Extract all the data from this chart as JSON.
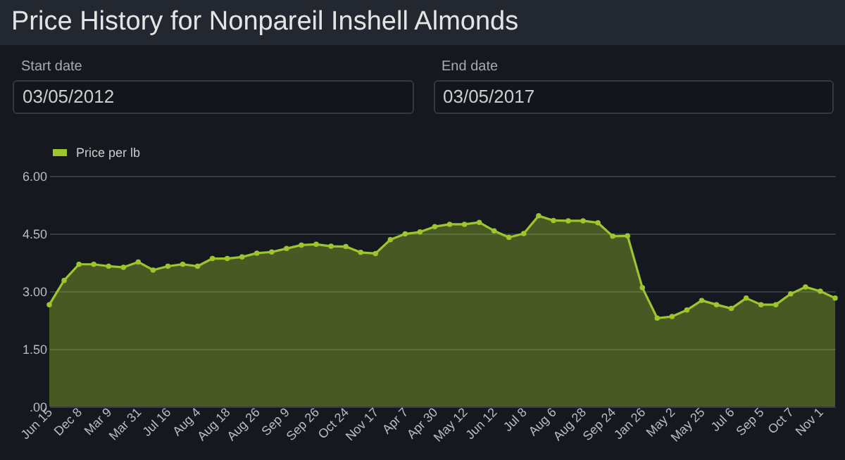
{
  "chart_data": {
    "type": "area",
    "title": "Price History for Nonpareil Inshell Almonds",
    "annotations": [
      "Start date",
      "03/05/2012",
      "End date",
      "03/05/2017"
    ],
    "categories": [
      "Jun 15",
      null,
      "Dec 8",
      null,
      "Mar 9",
      null,
      "Mar 31",
      null,
      "Jul 16",
      null,
      "Aug 4",
      null,
      "Aug 18",
      null,
      "Aug 26",
      null,
      "Sep 9",
      null,
      "Sep 26",
      null,
      "Oct 24",
      null,
      "Nov 17",
      null,
      "Apr 7",
      null,
      "Apr 30",
      null,
      "May 12",
      null,
      "Jun 12",
      null,
      "Jul 8",
      null,
      "Aug 6",
      null,
      "Aug 28",
      null,
      "Sep 24",
      null,
      "Jan 26",
      null,
      "May 2",
      null,
      "May 25",
      null,
      "Jul 6",
      null,
      "Sep 5",
      null,
      "Oct 7",
      null,
      "Nov 1",
      null
    ],
    "series": [
      {
        "name": "Price per lb",
        "color": "#9cc52e",
        "values": [
          2.65,
          3.28,
          3.7,
          3.7,
          3.65,
          3.62,
          3.76,
          3.55,
          3.65,
          3.7,
          3.65,
          3.85,
          3.85,
          3.89,
          3.99,
          4.02,
          4.11,
          4.2,
          4.22,
          4.17,
          4.16,
          4.01,
          3.98,
          4.34,
          4.49,
          4.54,
          4.68,
          4.74,
          4.74,
          4.79,
          4.57,
          4.4,
          4.5,
          4.96,
          4.84,
          4.83,
          4.83,
          4.78,
          4.43,
          4.44,
          3.09,
          2.3,
          2.34,
          2.51,
          2.76,
          2.65,
          2.55,
          2.82,
          2.65,
          2.65,
          2.93,
          3.11,
          3.0,
          2.82
        ]
      }
    ],
    "ylim": [
      0,
      6
    ],
    "yticks": [
      {
        "value": 0,
        "label": ".00"
      },
      {
        "value": 1.5,
        "label": "1.50"
      },
      {
        "value": 3,
        "label": "3.00"
      },
      {
        "value": 4.5,
        "label": "4.50"
      },
      {
        "value": 6,
        "label": "6.00"
      }
    ],
    "grid": "y",
    "legend": "top",
    "marker": "circle"
  }
}
